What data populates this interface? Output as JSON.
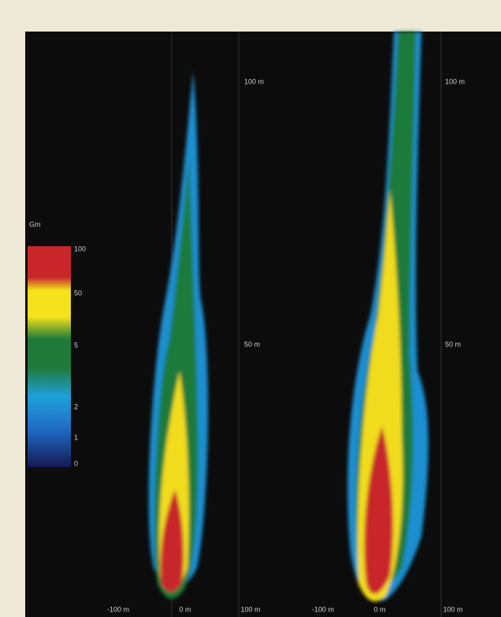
{
  "legend": {
    "title": "Gm",
    "labels": [
      "100",
      "50",
      "5",
      "2",
      "1",
      "0"
    ]
  },
  "panels": [
    {
      "distance_labels": [
        "100 m",
        "50 m"
      ],
      "axis_labels": [
        "-100 m",
        "0 m",
        "100 m"
      ]
    },
    {
      "distance_labels": [
        "100 m",
        "50 m"
      ],
      "axis_labels": [
        "-100 m",
        "0 m",
        "100 m"
      ]
    }
  ]
}
